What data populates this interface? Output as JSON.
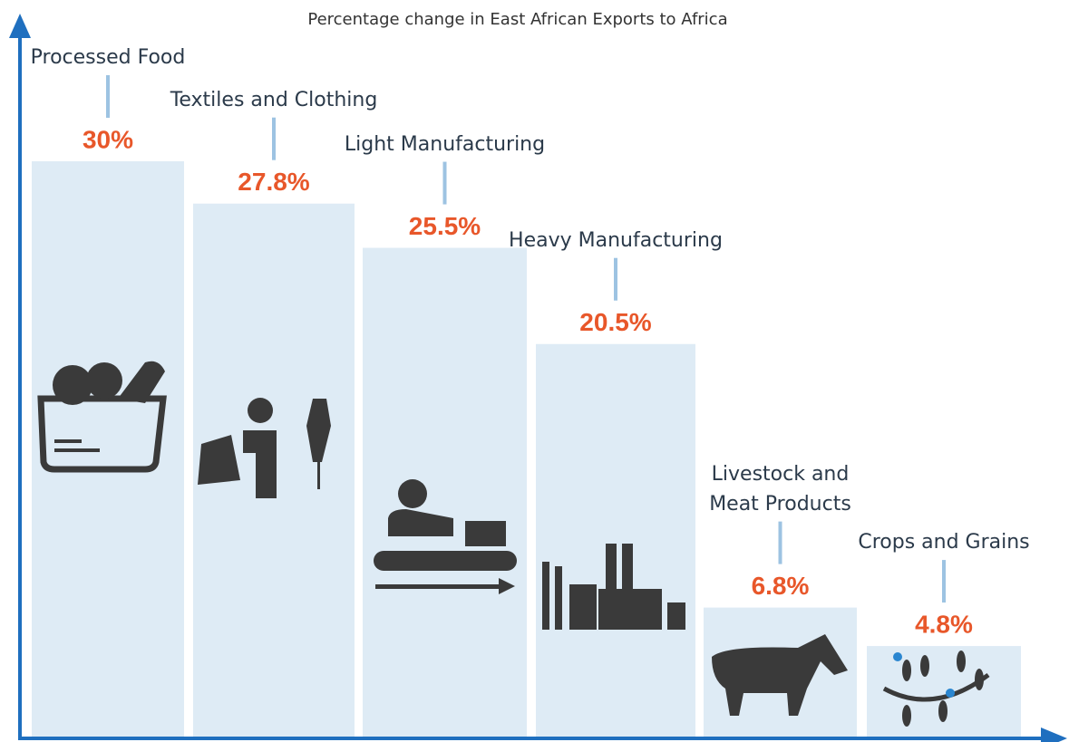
{
  "chart_data": {
    "type": "bar",
    "title": "Percentage change in East African Exports to Africa",
    "categories": [
      "Processed Food",
      "Textiles and Clothing",
      "Light Manufacturing",
      "Heavy Manufacturing",
      "Livestock and Meat Products",
      "Crops and Grains"
    ],
    "values": [
      30,
      27.8,
      25.5,
      20.5,
      6.8,
      4.8
    ],
    "value_labels": [
      "30%",
      "27.8%",
      "25.5%",
      "20.5%",
      "6.8%",
      "4.8%"
    ],
    "color": "#deebf5"
  }
}
